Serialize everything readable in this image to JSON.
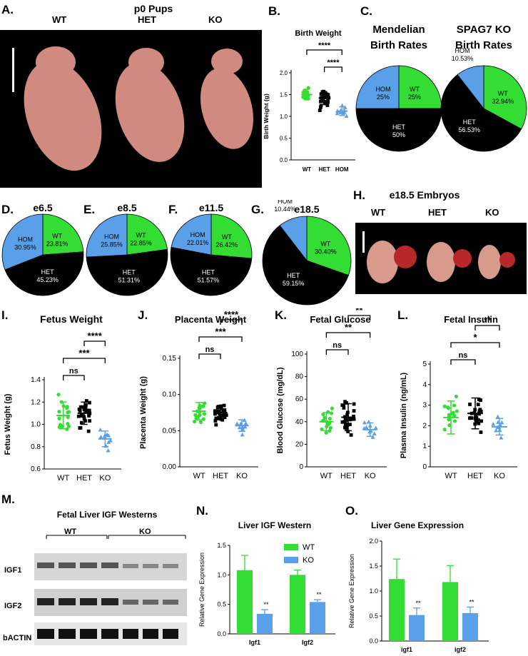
{
  "panel_letters": {
    "a": "A.",
    "b": "B.",
    "c": "C.",
    "d": "D.",
    "e": "E.",
    "f": "F.",
    "g": "G.",
    "h": "H.",
    "i": "I.",
    "j": "J.",
    "k": "K.",
    "l": "L.",
    "m": "M.",
    "n": "N.",
    "o": "O."
  },
  "colors": {
    "wt": "#33dd33",
    "het": "#000000",
    "hom": "#5aa0e8"
  },
  "panel_a": {
    "title": "p0 Pups",
    "labels": [
      "WT",
      "HET",
      "KO"
    ]
  },
  "panel_h": {
    "title": "e18.5 Embryos",
    "labels": [
      "WT",
      "HET",
      "KO"
    ]
  },
  "panel_m": {
    "title": "Fetal Liver IGF Westerns",
    "groups": [
      "WT",
      "KO"
    ],
    "bands": [
      "IGF1",
      "IGF2",
      "bACTIN"
    ]
  },
  "chart_data": [
    {
      "id": "B",
      "type": "scatter",
      "title": "Birth Weight",
      "ylabel": "Birth Weight (g)",
      "categories": [
        "WT",
        "HET",
        "HOM"
      ],
      "yticks": [
        "0.0",
        "0.5",
        "1.0",
        "1.5",
        "2.0"
      ],
      "ylim": [
        0,
        2.0
      ],
      "means": [
        1.5,
        1.42,
        1.12
      ],
      "sd": [
        0.12,
        0.15,
        0.1
      ],
      "significance": [
        {
          "from": 0,
          "to": 2,
          "label": "****"
        },
        {
          "from": 1,
          "to": 2,
          "label": "****"
        }
      ]
    },
    {
      "id": "C1",
      "type": "pie",
      "title": [
        "Mendelian",
        "Birth Rates"
      ],
      "slices": [
        {
          "name": "WT",
          "value": 25,
          "label": [
            "WT",
            "25%"
          ]
        },
        {
          "name": "HET",
          "value": 50,
          "label": [
            "HET",
            "50%"
          ]
        },
        {
          "name": "HOM",
          "value": 25,
          "label": [
            "HOM",
            "25%"
          ]
        }
      ]
    },
    {
      "id": "C2",
      "type": "pie",
      "title": [
        "SPAG7 KO",
        "Birth Rates"
      ],
      "slices": [
        {
          "name": "WT",
          "value": 32.94,
          "label": [
            "WT",
            "32.94%"
          ]
        },
        {
          "name": "HET",
          "value": 56.53,
          "label": [
            "HET",
            "56.53%"
          ]
        },
        {
          "name": "HOM",
          "value": 10.53,
          "label": [
            "HOM",
            "10.53%"
          ]
        }
      ]
    },
    {
      "id": "D",
      "type": "pie",
      "title": "e6.5",
      "slices": [
        {
          "name": "WT",
          "value": 23.81,
          "label": [
            "WT",
            "23.81%"
          ]
        },
        {
          "name": "HET",
          "value": 45.23,
          "label": [
            "HET",
            "45.23%"
          ]
        },
        {
          "name": "HOM",
          "value": 30.95,
          "label": [
            "HOM",
            "30.95%"
          ]
        }
      ]
    },
    {
      "id": "E",
      "type": "pie",
      "title": "e8.5",
      "slices": [
        {
          "name": "WT",
          "value": 22.85,
          "label": [
            "WT",
            "22.85%"
          ]
        },
        {
          "name": "HET",
          "value": 51.31,
          "label": [
            "HET",
            "51.31%"
          ]
        },
        {
          "name": "HOM",
          "value": 25.85,
          "label": [
            "HOM",
            "25.85%"
          ]
        }
      ]
    },
    {
      "id": "F",
      "type": "pie",
      "title": "e11.5",
      "slices": [
        {
          "name": "WT",
          "value": 26.42,
          "label": [
            "WT",
            "26.42%"
          ]
        },
        {
          "name": "HET",
          "value": 51.57,
          "label": [
            "HET",
            "51.57%"
          ]
        },
        {
          "name": "HOM",
          "value": 22.01,
          "label": [
            "HOM",
            "22.01%"
          ]
        }
      ]
    },
    {
      "id": "G",
      "type": "pie",
      "title": "e18.5",
      "slices": [
        {
          "name": "WT",
          "value": 30.4,
          "label": [
            "WT",
            "30.40%"
          ]
        },
        {
          "name": "HET",
          "value": 59.15,
          "label": [
            "HET",
            "59.15%"
          ]
        },
        {
          "name": "HOM",
          "value": 10.44,
          "label": [
            "HOM",
            "10.44%"
          ]
        }
      ]
    },
    {
      "id": "I",
      "type": "scatter",
      "title": "Fetus Weight",
      "ylabel": "Fetus Weight (g)",
      "categories": [
        "WT",
        "HET",
        "KO"
      ],
      "yticks": [
        "0.6",
        "0.8",
        "1.0",
        "1.2",
        "1.4"
      ],
      "ylim": [
        0.6,
        1.4
      ],
      "means": [
        1.08,
        1.1,
        0.87
      ],
      "sd": [
        0.12,
        0.1,
        0.07
      ],
      "significance": [
        {
          "from": 0,
          "to": 1,
          "label": "ns"
        },
        {
          "from": 0,
          "to": 2,
          "label": "***"
        },
        {
          "from": 1,
          "to": 2,
          "label": "****"
        }
      ]
    },
    {
      "id": "J",
      "type": "scatter",
      "title": "Placenta Weight",
      "ylabel": "Placenta Weight (g)",
      "categories": [
        "WT",
        "HET",
        "KO"
      ],
      "yticks": [
        "0.00",
        "0.05",
        "0.10",
        "0.15"
      ],
      "ylim": [
        0,
        0.15
      ],
      "means": [
        0.077,
        0.075,
        0.057
      ],
      "sd": [
        0.012,
        0.01,
        0.008
      ],
      "significance": [
        {
          "from": 0,
          "to": 1,
          "label": "ns"
        },
        {
          "from": 0,
          "to": 2,
          "label": "***"
        },
        {
          "from": 1,
          "to": 2,
          "label": "****"
        }
      ]
    },
    {
      "id": "K",
      "type": "scatter",
      "title": "Fetal Glucose",
      "ylabel": "Blood Glucose (mg/dL)",
      "categories": [
        "WT",
        "HET",
        "KO"
      ],
      "yticks": [
        "0",
        "20",
        "40",
        "60",
        "80",
        "100"
      ],
      "ylim": [
        0,
        100
      ],
      "means": [
        40,
        44,
        33
      ],
      "sd": [
        8,
        12,
        6
      ],
      "significance": [
        {
          "from": 0,
          "to": 1,
          "label": "ns"
        },
        {
          "from": 0,
          "to": 2,
          "label": "**"
        },
        {
          "from": 1,
          "to": 2,
          "label": "**"
        }
      ]
    },
    {
      "id": "L",
      "type": "scatter",
      "title": "Fetal Insulin",
      "ylabel": "Plasma Insulin (ng/mL)",
      "categories": [
        "WT",
        "HET",
        "KO"
      ],
      "yticks": [
        "0",
        "1",
        "2",
        "3",
        "4",
        "5"
      ],
      "ylim": [
        0,
        5
      ],
      "means": [
        2.4,
        2.6,
        1.95
      ],
      "sd": [
        0.8,
        0.75,
        0.4
      ],
      "significance": [
        {
          "from": 0,
          "to": 1,
          "label": "ns"
        },
        {
          "from": 0,
          "to": 2,
          "label": "*"
        },
        {
          "from": 1,
          "to": 2,
          "label": "**"
        }
      ]
    },
    {
      "id": "N",
      "type": "bar",
      "title": "Liver IGF Western",
      "ylabel": "Relative Gene Expression",
      "categories": [
        "Igf1",
        "Igf2"
      ],
      "yticks": [
        "0.0",
        "0.5",
        "1.0",
        "1.5"
      ],
      "ylim": [
        0,
        1.5
      ],
      "series": [
        {
          "name": "WT",
          "values": [
            1.08,
            1.0
          ],
          "err": [
            0.25,
            0.08
          ]
        },
        {
          "name": "KO",
          "values": [
            0.34,
            0.54
          ],
          "err": [
            0.07,
            0.04
          ]
        }
      ],
      "annotations": [
        "**",
        "**"
      ],
      "legend": "top-right"
    },
    {
      "id": "O",
      "type": "bar",
      "title": "Liver Gene Expression",
      "ylabel": "Relative Gene Expression",
      "categories": [
        "igf1",
        "igf2"
      ],
      "yticks": [
        "0.0",
        "0.5",
        "1.0",
        "1.5",
        "2.0"
      ],
      "ylim": [
        0,
        2.0
      ],
      "series": [
        {
          "name": "WT",
          "values": [
            1.24,
            1.18
          ],
          "err": [
            0.4,
            0.33
          ]
        },
        {
          "name": "KO",
          "values": [
            0.52,
            0.56
          ],
          "err": [
            0.14,
            0.12
          ]
        }
      ],
      "annotations": [
        "**",
        "**"
      ]
    }
  ]
}
